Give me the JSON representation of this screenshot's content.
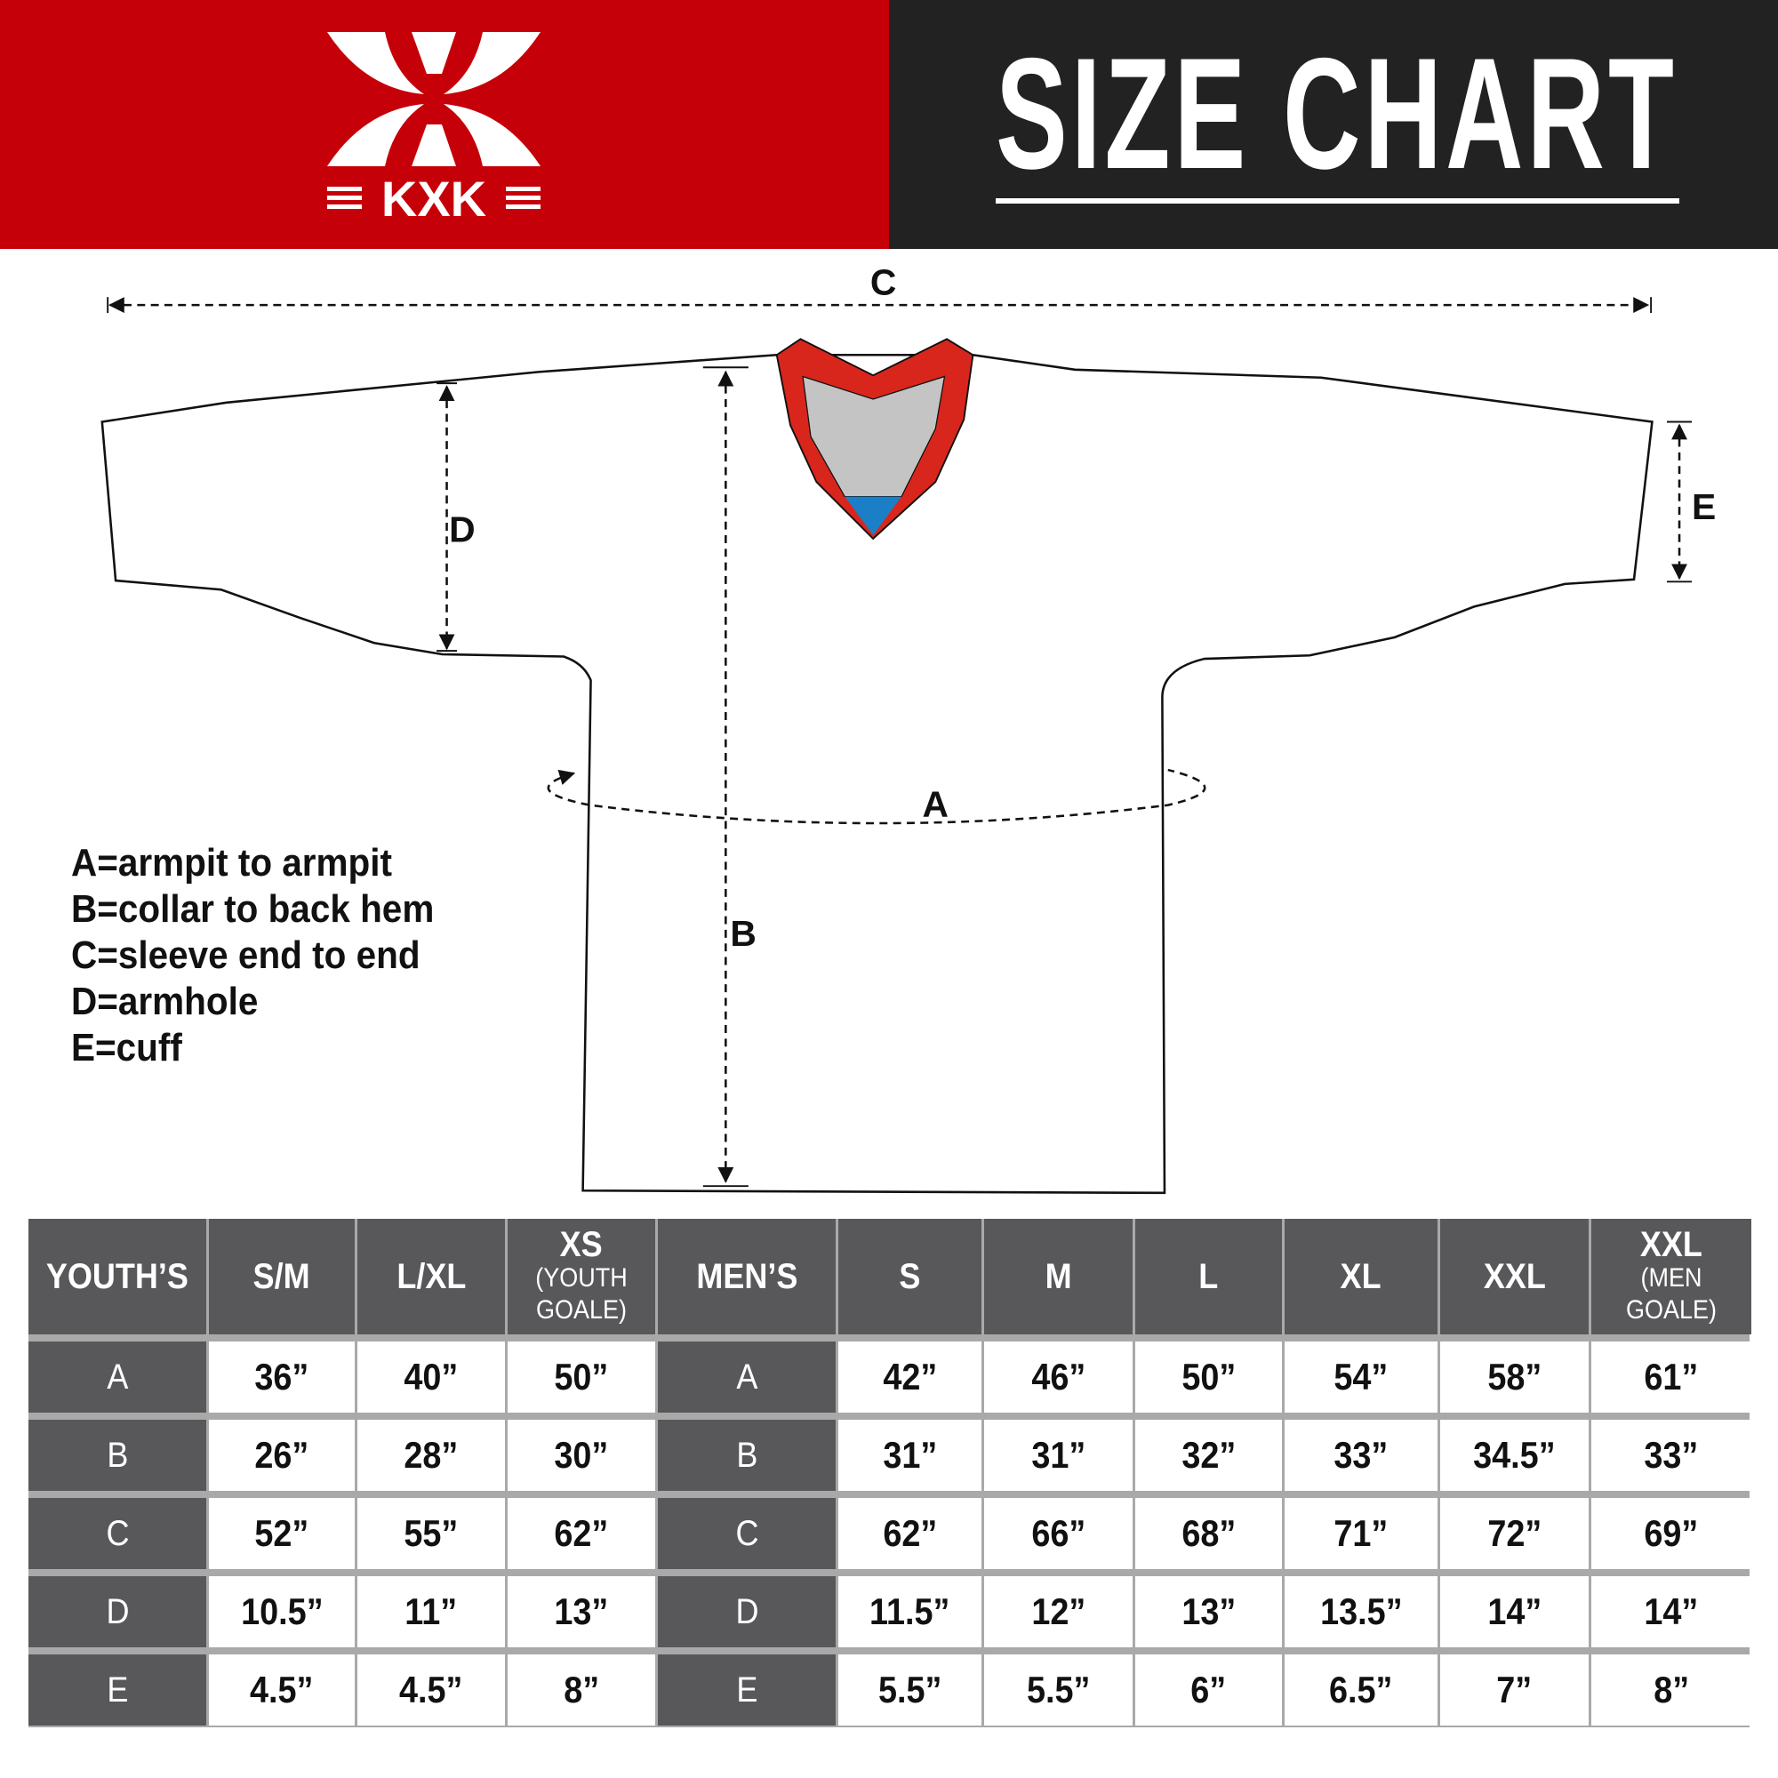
{
  "brand": {
    "name": "KXK",
    "colors": {
      "red": "#c60008",
      "dark": "#222222",
      "table_header": "#58585a",
      "collar_gray": "#c4c4c4",
      "collar_blue": "#1a7fc7"
    }
  },
  "header": {
    "title": "SIZE CHART"
  },
  "diagram": {
    "labels": {
      "a": "A",
      "b": "B",
      "c": "C",
      "d": "D",
      "e": "E"
    }
  },
  "legend": [
    "A=armpit to armpit",
    "B=collar to back hem",
    "C=sleeve end to end",
    "D=armhole",
    "E=cuff"
  ],
  "table": {
    "headers": [
      {
        "main": "YOUTH’S",
        "sub": ""
      },
      {
        "main": "S/M",
        "sub": ""
      },
      {
        "main": "L/XL",
        "sub": ""
      },
      {
        "main": "XS",
        "sub": "(YOUTH GOALE)"
      },
      {
        "main": "MEN’S",
        "sub": ""
      },
      {
        "main": "S",
        "sub": ""
      },
      {
        "main": "M",
        "sub": ""
      },
      {
        "main": "L",
        "sub": ""
      },
      {
        "main": "XL",
        "sub": ""
      },
      {
        "main": "XXL",
        "sub": ""
      },
      {
        "main": "XXL",
        "sub": "(MEN GOALE)"
      }
    ],
    "rows": [
      {
        "label": "A",
        "youth": [
          "36”",
          "40”",
          "50”"
        ],
        "men_label": "A",
        "men": [
          "42”",
          "46”",
          "50”",
          "54”",
          "58”",
          "61”"
        ]
      },
      {
        "label": "B",
        "youth": [
          "26”",
          "28”",
          "30”"
        ],
        "men_label": "B",
        "men": [
          "31”",
          "31”",
          "32”",
          "33”",
          "34.5”",
          "33”"
        ]
      },
      {
        "label": "C",
        "youth": [
          "52”",
          "55”",
          "62”"
        ],
        "men_label": "C",
        "men": [
          "62”",
          "66”",
          "68”",
          "71”",
          "72”",
          "69”"
        ]
      },
      {
        "label": "D",
        "youth": [
          "10.5”",
          "11”",
          "13”"
        ],
        "men_label": "D",
        "men": [
          "11.5”",
          "12”",
          "13”",
          "13.5”",
          "14”",
          "14”"
        ]
      },
      {
        "label": "E",
        "youth": [
          "4.5”",
          "4.5”",
          "8”"
        ],
        "men_label": "E",
        "men": [
          "5.5”",
          "5.5”",
          "6”",
          "6.5”",
          "7”",
          "8”"
        ]
      }
    ]
  }
}
